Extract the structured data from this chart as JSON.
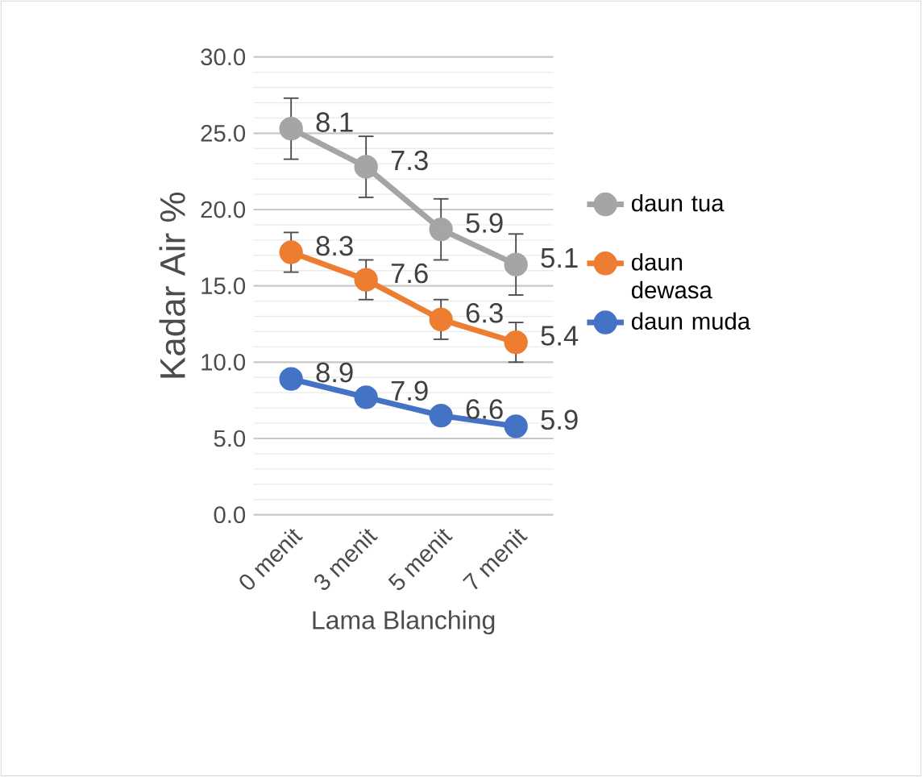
{
  "chart_data": {
    "type": "line",
    "xlabel": "Lama Blanching",
    "ylabel": "Kadar Air %",
    "categories": [
      "0 menit",
      "3 menit",
      "5 menit",
      "7 menit"
    ],
    "series": [
      {
        "name": "daun tua",
        "color": "#a5a5a5",
        "values": [
          25.3,
          22.8,
          18.7,
          16.4
        ],
        "errors": [
          2.0,
          2.0,
          2.0,
          2.0
        ]
      },
      {
        "name": "daun dewasa",
        "color": "#ed7d31",
        "values": [
          17.2,
          15.4,
          12.8,
          11.3
        ],
        "errors": [
          1.3,
          1.3,
          1.3,
          1.3
        ]
      },
      {
        "name": "daun muda",
        "color": "#4472c4",
        "values": [
          8.9,
          7.7,
          6.5,
          5.8
        ]
      }
    ],
    "annotations": [
      {
        "text": "8.1",
        "x": "0 menit",
        "y": 25.3
      },
      {
        "text": "7.3",
        "x": "3 menit",
        "y": 22.8
      },
      {
        "text": "5.9",
        "x": "5 menit",
        "y": 18.7
      },
      {
        "text": "5.1",
        "x": "7 menit",
        "y": 16.4
      },
      {
        "text": "8.3",
        "x": "0 menit",
        "y": 17.2
      },
      {
        "text": "7.6",
        "x": "3 menit",
        "y": 15.4
      },
      {
        "text": "6.3",
        "x": "5 menit",
        "y": 12.8
      },
      {
        "text": "5.4",
        "x": "7 menit",
        "y": 11.3
      },
      {
        "text": "8.9",
        "x": "0 menit",
        "y": 8.9
      },
      {
        "text": "7.9",
        "x": "3 menit",
        "y": 7.7
      },
      {
        "text": "6.6",
        "x": "5 menit",
        "y": 6.5
      },
      {
        "text": "5.9",
        "x": "7 menit",
        "y": 5.8
      }
    ],
    "ylim": [
      0,
      30
    ],
    "yticks": [
      {
        "value": 0,
        "label": "0.0"
      },
      {
        "value": 5,
        "label": "5.0"
      },
      {
        "value": 10,
        "label": "10.0"
      },
      {
        "value": 15,
        "label": "15.0"
      },
      {
        "value": 20,
        "label": "20.0"
      },
      {
        "value": 25,
        "label": "25.0"
      },
      {
        "value": 30,
        "label": "30.0"
      }
    ],
    "grid": "y",
    "legend": "right",
    "marker": "circle",
    "line_style": "solid"
  }
}
